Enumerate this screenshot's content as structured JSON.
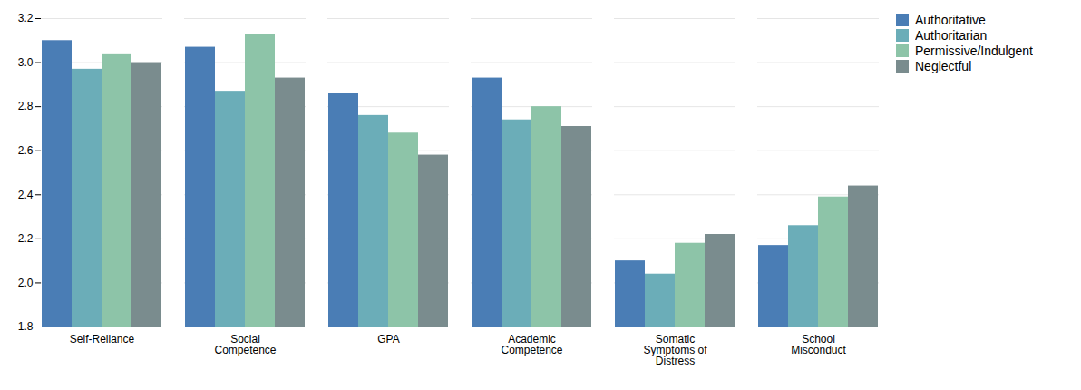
{
  "chart_data": {
    "type": "bar",
    "categories": [
      "Self-Reliance",
      "Social\nCompetence",
      "GPA",
      "Academic\nCompetence",
      "Somatic\nSymptoms of\nDistress",
      "School\nMisconduct"
    ],
    "series": [
      {
        "name": "Authoritative",
        "color": "#4A7DB5",
        "values": [
          3.1,
          3.07,
          2.86,
          2.93,
          2.1,
          2.17
        ]
      },
      {
        "name": "Authoritarian",
        "color": "#6BADB8",
        "values": [
          2.97,
          2.87,
          2.76,
          2.74,
          2.04,
          2.26
        ]
      },
      {
        "name": "Permissive/Indulgent",
        "color": "#8DC4A8",
        "values": [
          3.04,
          3.13,
          2.68,
          2.8,
          2.18,
          2.39
        ]
      },
      {
        "name": "Neglectful",
        "color": "#7A8C8E",
        "values": [
          3.0,
          2.93,
          2.58,
          2.71,
          2.22,
          2.44
        ]
      }
    ],
    "ylim": [
      1.8,
      3.2
    ],
    "yticks": [
      1.8,
      {
        "value": 2.0,
        "label": "2.0"
      },
      2.2,
      2.4,
      2.6,
      2.8,
      {
        "value": 3.0,
        "label": "3.0"
      },
      3.2
    ],
    "grid": true,
    "legend": "right"
  }
}
